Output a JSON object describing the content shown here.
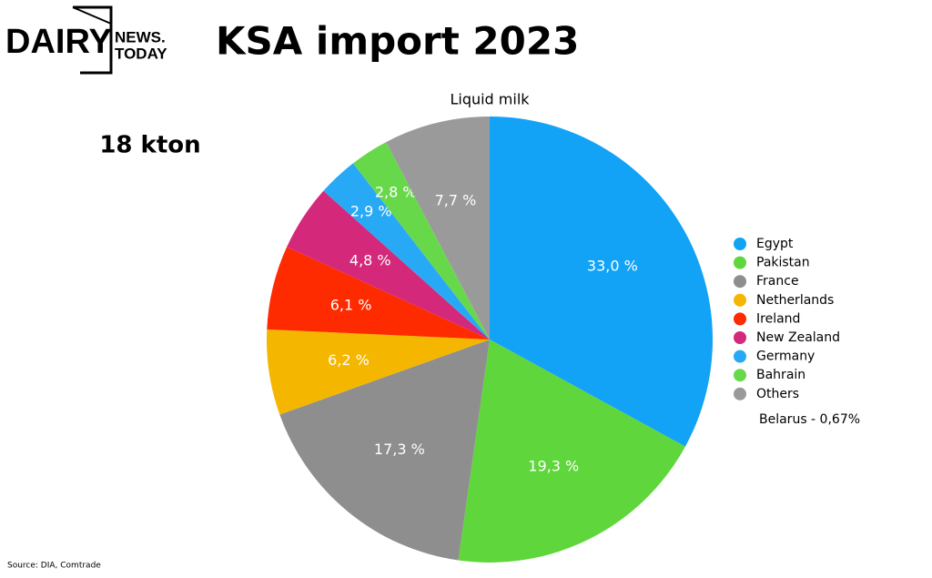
{
  "logo": {
    "main": "DAIRY",
    "top": "NEWS.",
    "bottom": "TODAY"
  },
  "chart_data": {
    "type": "pie",
    "title": "KSA import 2023",
    "subtitle": "Liquid milk",
    "total": "18 kton",
    "categories": [
      "Egypt",
      "Pakistan",
      "France",
      "Netherlands",
      "Ireland",
      "New Zealand",
      "Germany",
      "Bahrain",
      "Others"
    ],
    "values": [
      33.0,
      19.3,
      17.3,
      6.2,
      6.1,
      4.8,
      2.9,
      2.8,
      7.7
    ],
    "value_labels": [
      "33,0 %",
      "19,3 %",
      "17,3 %",
      "6,2 %",
      "6,1 %",
      "4,8 %",
      "2,9 %",
      "2,8 %",
      "7,7 %"
    ],
    "colors": [
      "#12a3f6",
      "#5fd63b",
      "#8e8e8e",
      "#f5b600",
      "#fe2a00",
      "#d4287a",
      "#28a9f6",
      "#68d84b",
      "#9a9a9a"
    ],
    "legend_position": "right",
    "note": "Belarus - 0,67%",
    "source": "Source: DIA, Comtrade"
  }
}
